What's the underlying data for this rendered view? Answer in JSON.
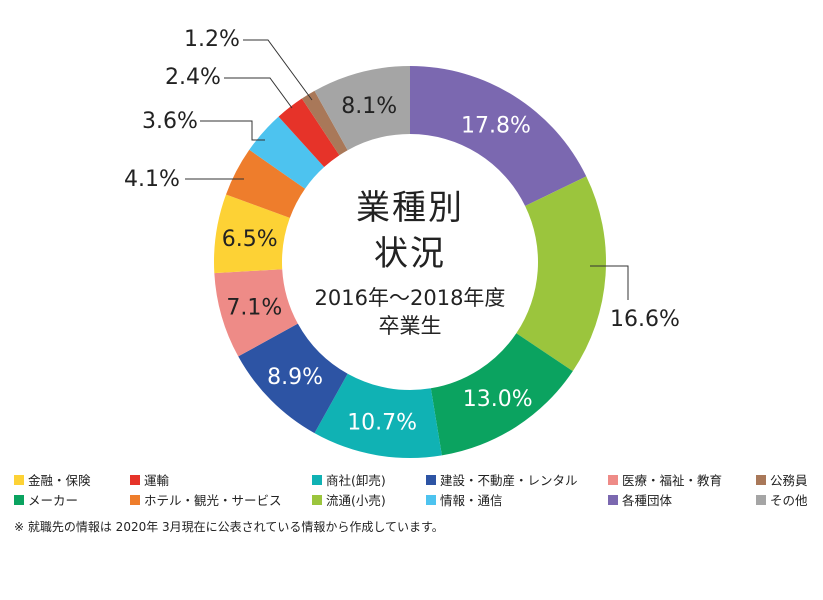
{
  "center_title": {
    "line1": "業種別",
    "line2": "状況",
    "line3": "2016年～2018年度",
    "line4": "卒業生"
  },
  "chart_data": {
    "type": "pie",
    "donut": true,
    "title": "業種別状況",
    "subtitle": "2016年～2018年度卒業生",
    "slices": [
      {
        "label": "各種団体",
        "value": 17.8,
        "text": "17.8%",
        "color": "#7b68b0"
      },
      {
        "label": "流通(小売)",
        "value": 16.6,
        "text": "16.6%",
        "color": "#9bc53d"
      },
      {
        "label": "メーカー",
        "value": 13.0,
        "text": "13.0%",
        "color": "#0ba360"
      },
      {
        "label": "商社(卸売)",
        "value": 10.7,
        "text": "10.7%",
        "color": "#10b2b4"
      },
      {
        "label": "建設・不動産・レンタル",
        "value": 8.9,
        "text": "8.9%",
        "color": "#2d54a4"
      },
      {
        "label": "医療・福祉・教育",
        "value": 7.1,
        "text": "7.1%",
        "color": "#ee8b87"
      },
      {
        "label": "金融・保険",
        "value": 6.5,
        "text": "6.5%",
        "color": "#fdd235"
      },
      {
        "label": "ホテル・観光・サービス",
        "value": 4.1,
        "text": "4.1%",
        "color": "#ee7d2c"
      },
      {
        "label": "情報・通信",
        "value": 3.6,
        "text": "3.6%",
        "color": "#4dc3ef"
      },
      {
        "label": "運輸",
        "value": 2.4,
        "text": "2.4%",
        "color": "#e63329"
      },
      {
        "label": "公務員",
        "value": 1.2,
        "text": "1.2%",
        "color": "#a97859"
      },
      {
        "label": "その他",
        "value": 8.1,
        "text": "8.1%",
        "color": "#a5a5a5"
      }
    ]
  },
  "legend": {
    "row1": [
      {
        "label": "金融・保険",
        "color": "#fdd235"
      },
      {
        "label": "運輸",
        "color": "#e63329"
      },
      {
        "label": "商社(卸売)",
        "color": "#10b2b4"
      },
      {
        "label": "建設・不動産・レンタル",
        "color": "#2d54a4"
      },
      {
        "label": "医療・福祉・教育",
        "color": "#ee8b87"
      },
      {
        "label": "公務員",
        "color": "#a97859"
      }
    ],
    "row2": [
      {
        "label": "メーカー",
        "color": "#0ba360"
      },
      {
        "label": "ホテル・観光・サービス",
        "color": "#ee7d2c"
      },
      {
        "label": "流通(小売)",
        "color": "#9bc53d"
      },
      {
        "label": "情報・通信",
        "color": "#4dc3ef"
      },
      {
        "label": "各種団体",
        "color": "#7b68b0"
      },
      {
        "label": "その他",
        "color": "#a5a5a5"
      }
    ]
  },
  "note": "※ 就職先の情報は 2020年 3月現在に公表されている情報から作成しています。"
}
